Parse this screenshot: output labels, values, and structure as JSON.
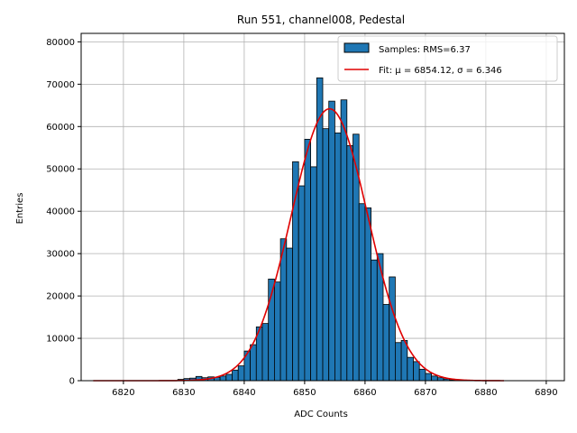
{
  "chart_data": {
    "type": "bar",
    "title": "Run 551, channel008, Pedestal",
    "xlabel": "ADC Counts",
    "ylabel": "Entries",
    "xlim": [
      6813,
      6893
    ],
    "ylim": [
      0,
      82000
    ],
    "xticks": [
      6820,
      6830,
      6840,
      6850,
      6860,
      6870,
      6880,
      6890
    ],
    "yticks": [
      0,
      10000,
      20000,
      30000,
      40000,
      50000,
      60000,
      70000,
      80000
    ],
    "grid": true,
    "legend_position": "top-right",
    "bar_color": "#1f77b4",
    "fit_color": "#e00000",
    "series": [
      {
        "name": "Samples: RMS=6.37",
        "bins": [
          [
            6829,
            6830,
            300
          ],
          [
            6830,
            6831,
            500
          ],
          [
            6831,
            6832,
            600
          ],
          [
            6832,
            6833,
            1000
          ],
          [
            6833,
            6834,
            700
          ],
          [
            6834,
            6835,
            900
          ],
          [
            6835,
            6836,
            800
          ],
          [
            6836,
            6837,
            1100
          ],
          [
            6837,
            6838,
            1500
          ],
          [
            6838,
            6839,
            2500
          ],
          [
            6839,
            6840,
            3500
          ],
          [
            6840,
            6841,
            7000
          ],
          [
            6841,
            6842,
            8500
          ],
          [
            6842,
            6843,
            12700
          ],
          [
            6843,
            6844,
            13500
          ],
          [
            6844,
            6845,
            24000
          ],
          [
            6845,
            6846,
            23300
          ],
          [
            6846,
            6847,
            33500
          ],
          [
            6847,
            6848,
            31300
          ],
          [
            6848,
            6849,
            51700
          ],
          [
            6849,
            6850,
            46000
          ],
          [
            6850,
            6851,
            57000
          ],
          [
            6851,
            6852,
            50500
          ],
          [
            6852,
            6853,
            71500
          ],
          [
            6853,
            6854,
            59500
          ],
          [
            6854,
            6855,
            66000
          ],
          [
            6855,
            6856,
            58500
          ],
          [
            6856,
            6857,
            66300
          ],
          [
            6857,
            6858,
            55500
          ],
          [
            6858,
            6859,
            58200
          ],
          [
            6859,
            6860,
            41800
          ],
          [
            6860,
            6861,
            40800
          ],
          [
            6861,
            6862,
            28500
          ],
          [
            6862,
            6863,
            30000
          ],
          [
            6863,
            6864,
            18000
          ],
          [
            6864,
            6865,
            24500
          ],
          [
            6865,
            6866,
            9000
          ],
          [
            6866,
            6867,
            9500
          ],
          [
            6867,
            6868,
            5500
          ],
          [
            6868,
            6869,
            4500
          ],
          [
            6869,
            6870,
            2700
          ],
          [
            6870,
            6871,
            1700
          ],
          [
            6871,
            6872,
            1100
          ],
          [
            6872,
            6873,
            700
          ],
          [
            6873,
            6874,
            400
          ],
          [
            6874,
            6875,
            200
          ]
        ]
      },
      {
        "name": "Fit: μ = 6854.12, σ = 6.346",
        "type": "line",
        "mu": 6854.12,
        "sigma": 6.346,
        "amplitude": 64200,
        "x_range": [
          6815,
          6883
        ]
      }
    ]
  }
}
